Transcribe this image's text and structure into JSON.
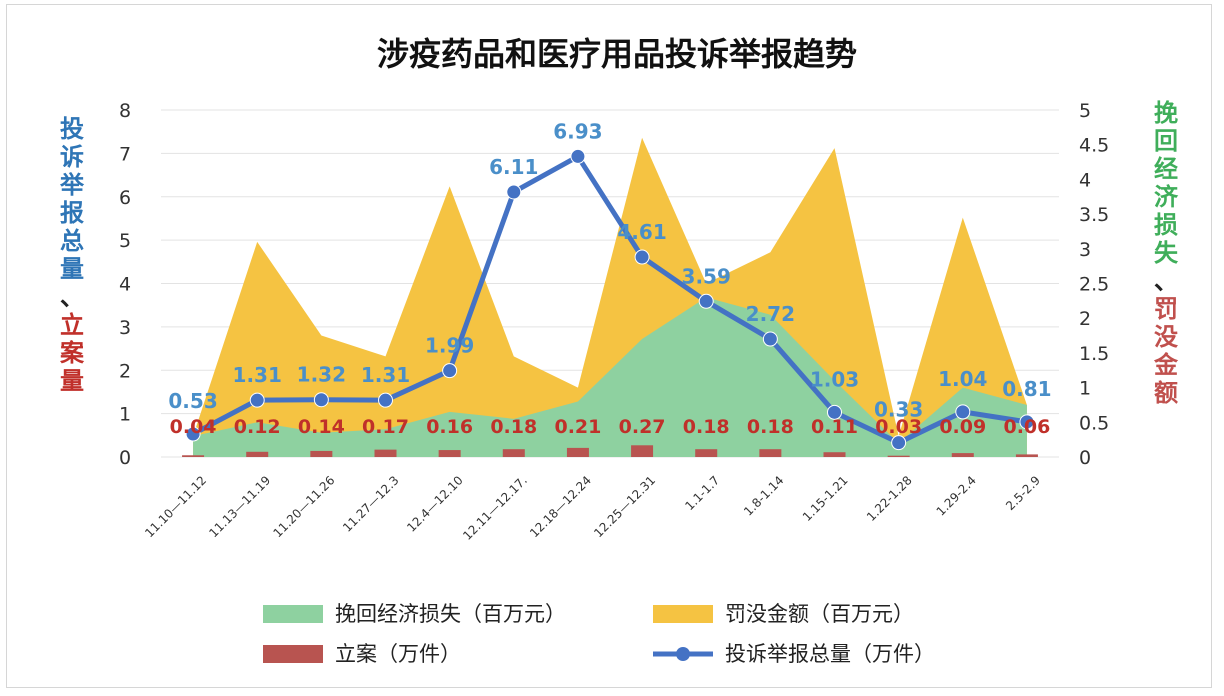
{
  "chart_data": {
    "type": "combo",
    "title": "涉疫药品和医疗用品投诉举报趋势",
    "categories": [
      "11.10—11.12",
      "11.13—11.19",
      "11.20—11.26",
      "11.27—12.3",
      "12.4—12.10",
      "12.11—12.17.",
      "12.18—12.24",
      "12.25—12.31",
      "1.1-1.7",
      "1.8-1.14",
      "1.15-1.21",
      "1.22-1.28",
      "1.29-2.4",
      "2.5-2.9"
    ],
    "left_axis": {
      "label": "投诉举报总量、立案量",
      "label_blue": "投诉举报总量",
      "label_sep": "、",
      "label_red": "立案量",
      "ylim": [
        0,
        8
      ],
      "ticks": [
        "0",
        "1",
        "2",
        "3",
        "4",
        "5",
        "6",
        "7",
        "8"
      ]
    },
    "right_axis": {
      "label": "挽回经济损失、罚没金额",
      "label_green": "挽回经济损失",
      "label_sep": "、",
      "label_red": "罚没金额",
      "ylim": [
        0,
        5
      ],
      "ticks": [
        "0",
        "0.5",
        "1",
        "1.5",
        "2",
        "2.5",
        "3",
        "3.5",
        "4",
        "4.5",
        "5"
      ]
    },
    "series": [
      {
        "name": "罚没金额（百万元）",
        "type": "area",
        "axis": "right",
        "color": "#F5C342",
        "values": [
          0.3,
          3.1,
          1.75,
          1.45,
          3.9,
          1.45,
          1.0,
          4.6,
          2.5,
          2.95,
          4.45,
          0.3,
          3.45,
          0.75
        ]
      },
      {
        "name": "挽回经济损失（百万元）",
        "type": "area",
        "axis": "right",
        "color": "#8ED1A0",
        "values": [
          0.3,
          0.5,
          0.35,
          0.4,
          0.65,
          0.55,
          0.8,
          1.7,
          2.3,
          2.05,
          1.1,
          0.2,
          1.0,
          0.75
        ]
      },
      {
        "name": "立案（万件）",
        "type": "bar",
        "axis": "left",
        "color": "#B85450",
        "values": [
          0.04,
          0.12,
          0.14,
          0.17,
          0.16,
          0.18,
          0.21,
          0.27,
          0.18,
          0.18,
          0.11,
          0.03,
          0.09,
          0.06
        ],
        "labels": [
          "0.04",
          "0.12",
          "0.14",
          "0.17",
          "0.16",
          "0.18",
          "0.21",
          "0.27",
          "0.18",
          "0.18",
          "0.11",
          "0.03",
          "0.09",
          "0.06"
        ]
      },
      {
        "name": "投诉举报总量（万件）",
        "type": "line",
        "axis": "left",
        "color": "#4472C4",
        "label_color": "#4A8FC9",
        "values": [
          0.53,
          1.31,
          1.32,
          1.31,
          1.99,
          6.11,
          6.93,
          4.61,
          3.59,
          2.72,
          1.03,
          0.33,
          1.04,
          0.81
        ],
        "labels": [
          "0.53",
          "1.31",
          "1.32",
          "1.31",
          "1.99",
          "6.11",
          "6.93",
          "4.61",
          "3.59",
          "2.72",
          "1.03",
          "0.33",
          "1.04",
          "0.81"
        ]
      }
    ],
    "legend": [
      {
        "name": "挽回经济损失（百万元）",
        "kind": "area",
        "color": "#8ED1A0"
      },
      {
        "name": "罚没金额（百万元）",
        "kind": "area",
        "color": "#F5C342"
      },
      {
        "name": "立案（万件）",
        "kind": "bar",
        "color": "#B85450"
      },
      {
        "name": "投诉举报总量（万件）",
        "kind": "line",
        "color": "#4472C4"
      }
    ],
    "legend_position": "bottom",
    "grid": true
  }
}
